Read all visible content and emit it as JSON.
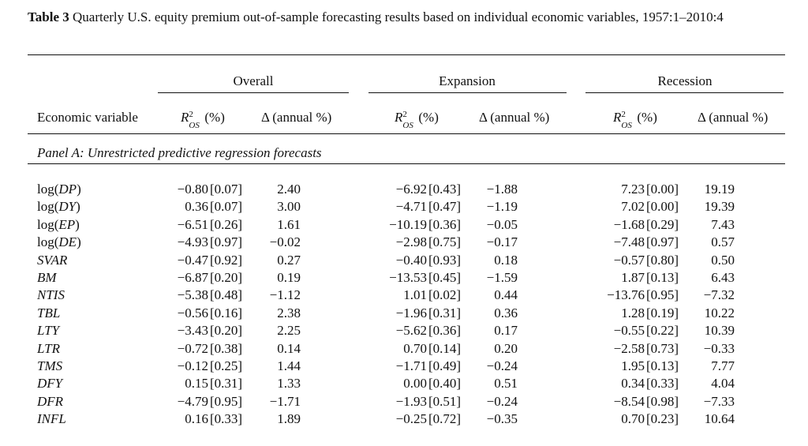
{
  "caption": {
    "label": "Table 3",
    "text": "Quarterly U.S. equity premium out-of-sample forecasting results based on individual economic variables, 1957:1–2010:4"
  },
  "groups": [
    "Overall",
    "Expansion",
    "Recession"
  ],
  "columns": {
    "variable": "Economic variable",
    "r_base": "R",
    "r_sup": "2",
    "r_sub": "OS",
    "r_unit": "(%)",
    "delta": "Δ (annual %)"
  },
  "panel_label": "Panel A: Unrestricted predictive regression forecasts",
  "rows": [
    {
      "name": "log(DP)",
      "o_r": "−0.80",
      "o_p": "[0.07]",
      "o_d": "2.40",
      "e_r": "−6.92",
      "e_p": "[0.43]",
      "e_d": "−1.88",
      "r_r": "7.23",
      "r_p": "[0.00]",
      "r_d": "19.19"
    },
    {
      "name": "log(DY)",
      "o_r": "0.36",
      "o_p": "[0.07]",
      "o_d": "3.00",
      "e_r": "−4.71",
      "e_p": "[0.47]",
      "e_d": "−1.19",
      "r_r": "7.02",
      "r_p": "[0.00]",
      "r_d": "19.39"
    },
    {
      "name": "log(EP)",
      "o_r": "−6.51",
      "o_p": "[0.26]",
      "o_d": "1.61",
      "e_r": "−10.19",
      "e_p": "[0.36]",
      "e_d": "−0.05",
      "r_r": "−1.68",
      "r_p": "[0.29]",
      "r_d": "7.43"
    },
    {
      "name": "log(DE)",
      "o_r": "−4.93",
      "o_p": "[0.97]",
      "o_d": "−0.02",
      "e_r": "−2.98",
      "e_p": "[0.75]",
      "e_d": "−0.17",
      "r_r": "−7.48",
      "r_p": "[0.97]",
      "r_d": "0.57"
    },
    {
      "name": "SVAR",
      "o_r": "−0.47",
      "o_p": "[0.92]",
      "o_d": "0.27",
      "e_r": "−0.40",
      "e_p": "[0.93]",
      "e_d": "0.18",
      "r_r": "−0.57",
      "r_p": "[0.80]",
      "r_d": "0.50"
    },
    {
      "name": "BM",
      "o_r": "−6.87",
      "o_p": "[0.20]",
      "o_d": "0.19",
      "e_r": "−13.53",
      "e_p": "[0.45]",
      "e_d": "−1.59",
      "r_r": "1.87",
      "r_p": "[0.13]",
      "r_d": "6.43"
    },
    {
      "name": "NTIS",
      "o_r": "−5.38",
      "o_p": "[0.48]",
      "o_d": "−1.12",
      "e_r": "1.01",
      "e_p": "[0.02]",
      "e_d": "0.44",
      "r_r": "−13.76",
      "r_p": "[0.95]",
      "r_d": "−7.32"
    },
    {
      "name": "TBL",
      "o_r": "−0.56",
      "o_p": "[0.16]",
      "o_d": "2.38",
      "e_r": "−1.96",
      "e_p": "[0.31]",
      "e_d": "0.36",
      "r_r": "1.28",
      "r_p": "[0.19]",
      "r_d": "10.22"
    },
    {
      "name": "LTY",
      "o_r": "−3.43",
      "o_p": "[0.20]",
      "o_d": "2.25",
      "e_r": "−5.62",
      "e_p": "[0.36]",
      "e_d": "0.17",
      "r_r": "−0.55",
      "r_p": "[0.22]",
      "r_d": "10.39"
    },
    {
      "name": "LTR",
      "o_r": "−0.72",
      "o_p": "[0.38]",
      "o_d": "0.14",
      "e_r": "0.70",
      "e_p": "[0.14]",
      "e_d": "0.20",
      "r_r": "−2.58",
      "r_p": "[0.73]",
      "r_d": "−0.33"
    },
    {
      "name": "TMS",
      "o_r": "−0.12",
      "o_p": "[0.25]",
      "o_d": "1.44",
      "e_r": "−1.71",
      "e_p": "[0.49]",
      "e_d": "−0.24",
      "r_r": "1.95",
      "r_p": "[0.13]",
      "r_d": "7.77"
    },
    {
      "name": "DFY",
      "o_r": "0.15",
      "o_p": "[0.31]",
      "o_d": "1.33",
      "e_r": "0.00",
      "e_p": "[0.40]",
      "e_d": "0.51",
      "r_r": "0.34",
      "r_p": "[0.33]",
      "r_d": "4.04"
    },
    {
      "name": "DFR",
      "o_r": "−4.79",
      "o_p": "[0.95]",
      "o_d": "−1.71",
      "e_r": "−1.93",
      "e_p": "[0.51]",
      "e_d": "−0.24",
      "r_r": "−8.54",
      "r_p": "[0.98]",
      "r_d": "−7.33"
    },
    {
      "name": "INFL",
      "o_r": "0.16",
      "o_p": "[0.33]",
      "o_d": "1.89",
      "e_r": "−0.25",
      "e_p": "[0.72]",
      "e_d": "−0.35",
      "r_r": "0.70",
      "r_p": "[0.23]",
      "r_d": "10.64"
    }
  ]
}
